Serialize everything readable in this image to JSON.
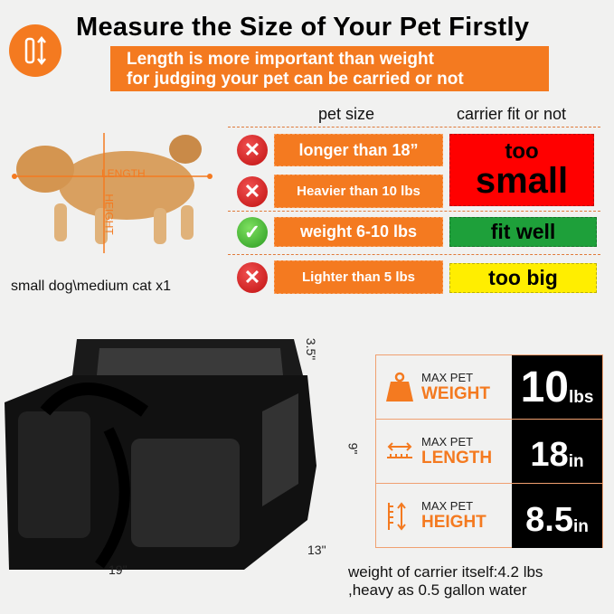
{
  "title": "Measure the Size of Your Pet Firstly",
  "banner": {
    "line1": "Length is more important than weight",
    "line2": "for judging your pet can be carried or not"
  },
  "headers": {
    "pet_size": "pet size",
    "fit": "carrier fit or not"
  },
  "rows": [
    {
      "label": "longer than 18”",
      "status": "x"
    },
    {
      "label": "Heavier than 10 lbs",
      "status": "x"
    },
    {
      "label": "weight 6-10 lbs",
      "status": "check"
    },
    {
      "label": "Lighter than 5 lbs",
      "status": "x"
    }
  ],
  "fit": {
    "too_small_1": "too",
    "too_small_2": "small",
    "fit_well": "fit well",
    "too_big": "too big"
  },
  "colors": {
    "orange": "#f47a20",
    "red": "#ff0000",
    "green": "#1ea03a",
    "yellow": "#ffee00"
  },
  "dog": {
    "length_label": "LENGTH",
    "height_label": "HEIGHT",
    "caption": "small dog\\medium cat x1"
  },
  "bag_dims": {
    "top": "3.5\"",
    "height": "9\"",
    "depth": "13\"",
    "width": "19\""
  },
  "specs": [
    {
      "icon": "weight-icon",
      "line1": "MAX PET",
      "line2": "WEIGHT",
      "value": "10",
      "unit": "lbs"
    },
    {
      "icon": "ruler-length-icon",
      "line1": "MAX PET",
      "line2": "LENGTH",
      "value": "18",
      "unit": "in"
    },
    {
      "icon": "ruler-height-icon",
      "line1": "MAX PET",
      "line2": "HEIGHT",
      "value": "8.5",
      "unit": "in"
    }
  ],
  "footer": {
    "line1": "weight of carrier itself:4.2 lbs",
    "line2": ",heavy as 0.5 gallon water"
  }
}
